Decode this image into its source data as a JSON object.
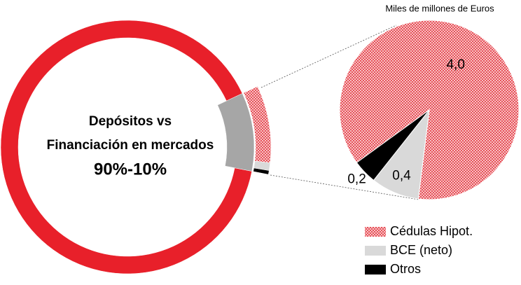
{
  "chart_data": [
    {
      "type": "donut",
      "annotations": [
        "Depósitos vs",
        "Financiación en mercados"
      ],
      "center_label": "90%-10%",
      "values": [
        90,
        10
      ],
      "colors": [
        "#e8202a",
        "#a6a6a6"
      ]
    },
    {
      "type": "pie",
      "subtitle": "Miles de millones de Euros",
      "categories": [
        "Cédulas Hipot.",
        "BCE (neto)",
        "Otros"
      ],
      "values": [
        4.0,
        0.4,
        0.2
      ],
      "value_labels": [
        "4,0",
        "0,4",
        "0,2"
      ],
      "colors": [
        "#e8202a",
        "#d9d9d9",
        "#000000"
      ],
      "hatch": [
        true,
        false,
        false
      ]
    }
  ]
}
